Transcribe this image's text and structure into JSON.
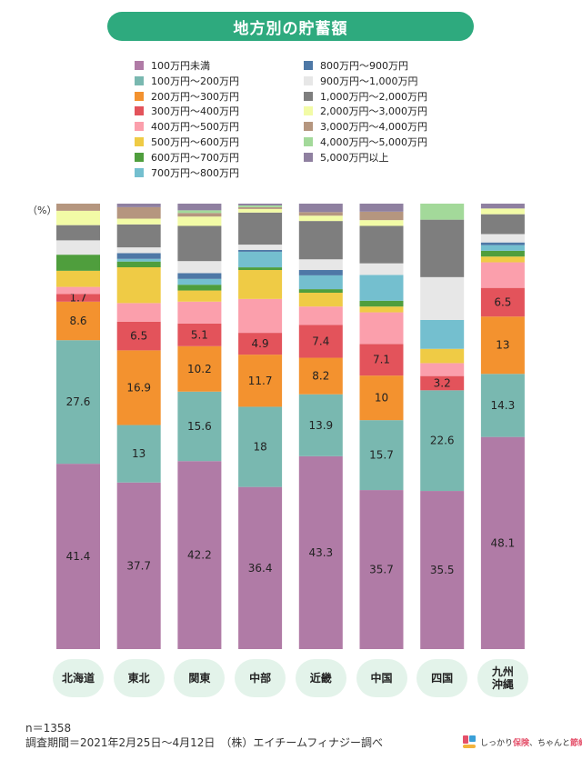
{
  "title": "地方別の貯蓄額",
  "unit_label": "（%）",
  "footer": {
    "sample": "n＝1358",
    "period": "調査期間＝2021年2月25日～4月12日　（株）エイチームフィナジー調べ"
  },
  "brand": {
    "part1": "しっかり",
    "highlight1": "保険",
    "part2": "、ちゃんと",
    "highlight2": "節約",
    "part3": "。",
    "colors": [
      "#e4506a",
      "#3aa0d8",
      "#f3b33d"
    ]
  },
  "chart_data": {
    "type": "bar",
    "stacked": true,
    "normalized": true,
    "ylim": [
      0,
      100
    ],
    "legend_position": "top",
    "categories": [
      "北海道",
      "東北",
      "関東",
      "中部",
      "近畿",
      "中国",
      "四国",
      "九州\n沖縄"
    ],
    "series": [
      {
        "name": "100万円未満",
        "color": "#b07ba6",
        "values": [
          41.4,
          37.7,
          42.2,
          36.4,
          43.3,
          35.7,
          35.5,
          48.1
        ],
        "labeled": [
          true,
          true,
          true,
          true,
          true,
          true,
          true,
          true
        ]
      },
      {
        "name": "100万円～200万円",
        "color": "#79b8b0",
        "values": [
          27.6,
          13,
          15.6,
          18,
          13.9,
          15.7,
          22.6,
          14.3
        ],
        "labeled": [
          true,
          true,
          true,
          true,
          true,
          true,
          true,
          true
        ]
      },
      {
        "name": "200万円～300万円",
        "color": "#f3922f",
        "values": [
          8.6,
          16.9,
          10.2,
          11.7,
          8.2,
          10,
          0,
          13
        ],
        "labeled": [
          true,
          true,
          true,
          true,
          true,
          true,
          false,
          true
        ]
      },
      {
        "name": "300万円～400万円",
        "color": "#e3535b",
        "values": [
          1.7,
          6.5,
          5.1,
          4.9,
          7.4,
          7.1,
          3.2,
          6.5
        ],
        "labeled": [
          true,
          true,
          true,
          true,
          true,
          true,
          true,
          true
        ]
      },
      {
        "name": "400万円～500万円",
        "color": "#fb9fac",
        "values": [
          1.6,
          4.2,
          4.9,
          7.6,
          4.1,
          7.1,
          2.9,
          5.8
        ],
        "labeled": [
          false,
          false,
          false,
          false,
          false,
          false,
          false,
          false
        ]
      },
      {
        "name": "500万円～600万円",
        "color": "#efcb45",
        "values": [
          3.6,
          8.1,
          2.5,
          6.5,
          3.1,
          1.3,
          3.2,
          1.3
        ],
        "labeled": [
          false,
          false,
          false,
          false,
          false,
          false,
          false,
          false
        ]
      },
      {
        "name": "600万円～700万円",
        "color": "#4f9e3d",
        "values": [
          3.6,
          1.3,
          1.3,
          0.6,
          0.8,
          1.3,
          0,
          1.3
        ],
        "labeled": [
          false,
          false,
          false,
          false,
          false,
          false,
          false,
          false
        ]
      },
      {
        "name": "700万円～800万円",
        "color": "#74bfcf",
        "values": [
          0,
          0.6,
          1.3,
          3.5,
          3.1,
          5.8,
          6.5,
          1.3
        ],
        "labeled": [
          false,
          false,
          false,
          false,
          false,
          false,
          false,
          false
        ]
      },
      {
        "name": "800万円～900万円",
        "color": "#4e78a6",
        "values": [
          0,
          1.3,
          1.3,
          0.4,
          1.2,
          0,
          0,
          0.6
        ],
        "labeled": [
          false,
          false,
          false,
          false,
          false,
          false,
          false,
          false
        ]
      },
      {
        "name": "900万円～1,000万円",
        "color": "#e7e7e7",
        "values": [
          3.2,
          1.3,
          2.7,
          1.2,
          2.4,
          2.6,
          9.6,
          1.9
        ],
        "labeled": [
          false,
          false,
          false,
          false,
          false,
          false,
          false,
          false
        ]
      },
      {
        "name": "1,000万円～2,000万円",
        "color": "#7e7e7e",
        "values": [
          3.4,
          5.2,
          7.9,
          7.2,
          8.6,
          8.4,
          12.9,
          4.5
        ],
        "labeled": [
          false,
          false,
          false,
          false,
          false,
          false,
          false,
          false
        ]
      },
      {
        "name": "2,000万円～3,000万円",
        "color": "#f2fba6",
        "values": [
          3.2,
          1.3,
          2.1,
          0.8,
          1.2,
          1.3,
          0,
          1.3
        ],
        "labeled": [
          false,
          false,
          false,
          false,
          false,
          false,
          false,
          false
        ]
      },
      {
        "name": "3,000万円～4,000万円",
        "color": "#b5967f",
        "values": [
          1.6,
          2.6,
          0.8,
          0.4,
          0.8,
          1.9,
          0,
          0
        ],
        "labeled": [
          false,
          false,
          false,
          false,
          false,
          false,
          false,
          false
        ]
      },
      {
        "name": "4,000万円～5,000万円",
        "color": "#a3d99a",
        "values": [
          0,
          0,
          0.6,
          0.4,
          0,
          0,
          3.6,
          0
        ],
        "labeled": [
          false,
          false,
          false,
          false,
          false,
          false,
          false,
          false
        ]
      },
      {
        "name": "5,000万円以上",
        "color": "#8f80a0",
        "values": [
          0,
          0.8,
          1.5,
          0.4,
          1.9,
          1.8,
          0,
          1.1
        ],
        "labeled": [
          false,
          false,
          false,
          false,
          false,
          false,
          false,
          false
        ]
      }
    ]
  }
}
